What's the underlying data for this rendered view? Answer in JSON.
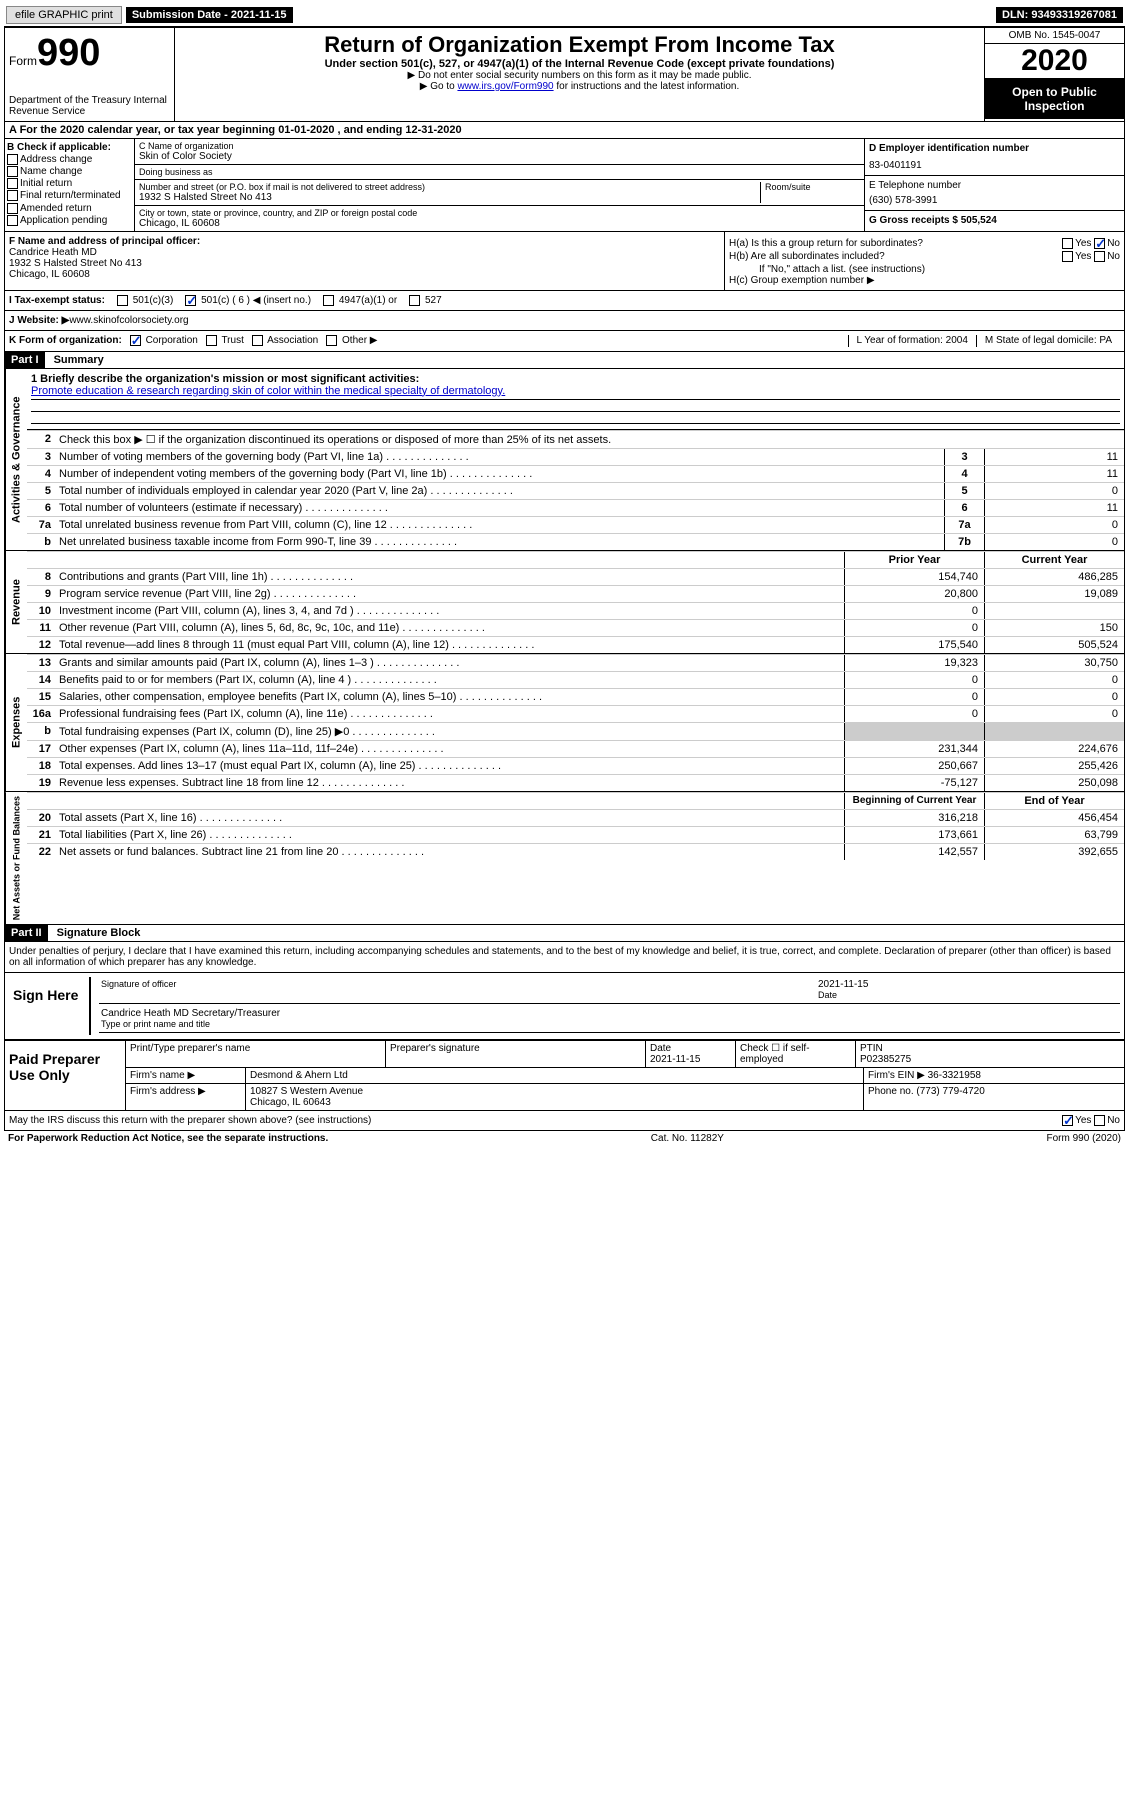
{
  "top": {
    "efile": "efile GRAPHIC print",
    "submission_label": "Submission Date - 2021-11-15",
    "dln": "DLN: 93493319267081"
  },
  "header": {
    "form_label": "Form",
    "form_num": "990",
    "dept": "Department of the Treasury Internal Revenue Service",
    "title": "Return of Organization Exempt From Income Tax",
    "subtitle": "Under section 501(c), 527, or 4947(a)(1) of the Internal Revenue Code (except private foundations)",
    "note1": "▶ Do not enter social security numbers on this form as it may be made public.",
    "note2_pre": "▶ Go to ",
    "note2_link": "www.irs.gov/Form990",
    "note2_post": " for instructions and the latest information.",
    "omb": "OMB No. 1545-0047",
    "year": "2020",
    "open": "Open to Public Inspection"
  },
  "row_a": "A For the 2020 calendar year, or tax year beginning 01-01-2020    , and ending 12-31-2020",
  "b": {
    "header": "B Check if applicable:",
    "items": [
      "Address change",
      "Name change",
      "Initial return",
      "Final return/terminated",
      "Amended return",
      "Application pending"
    ]
  },
  "c": {
    "name_label": "C Name of organization",
    "name": "Skin of Color Society",
    "dba_label": "Doing business as",
    "dba": "",
    "addr_label": "Number and street (or P.O. box if mail is not delivered to street address)",
    "room_label": "Room/suite",
    "addr": "1932 S Halsted Street No 413",
    "city_label": "City or town, state or province, country, and ZIP or foreign postal code",
    "city": "Chicago, IL  60608"
  },
  "d": {
    "ein_label": "D Employer identification number",
    "ein": "83-0401191",
    "phone_label": "E Telephone number",
    "phone": "(630) 578-3991",
    "gross_label": "G Gross receipts $ 505,524"
  },
  "f": {
    "label": "F  Name and address of principal officer:",
    "name": "Candrice Heath MD",
    "addr1": "1932 S Halsted Street No 413",
    "addr2": "Chicago, IL  60608"
  },
  "h": {
    "a_label": "H(a)  Is this a group return for subordinates?",
    "b_label": "H(b)  Are all subordinates included?",
    "b_note": "If \"No,\" attach a list. (see instructions)",
    "c_label": "H(c)  Group exemption number ▶"
  },
  "i": {
    "label": "I  Tax-exempt status:",
    "opts": [
      "501(c)(3)",
      "501(c) ( 6 ) ◀ (insert no.)",
      "4947(a)(1) or",
      "527"
    ]
  },
  "j": {
    "label": "J  Website: ▶ ",
    "value": "www.skinofcolorsociety.org"
  },
  "k": {
    "label": "K Form of organization:",
    "opts": [
      "Corporation",
      "Trust",
      "Association",
      "Other ▶"
    ],
    "l_label": "L Year of formation: 2004",
    "m_label": "M State of legal domicile: PA"
  },
  "part1": {
    "header": "Part I",
    "title": "Summary",
    "line1_label": "1  Briefly describe the organization's mission or most significant activities:",
    "mission": "Promote education & research regarding skin of color within the medical specialty of dermatology.",
    "line2": "Check this box ▶ ☐  if the organization discontinued its operations or disposed of more than 25% of its net assets.",
    "governance": [
      {
        "n": "3",
        "d": "Number of voting members of the governing body (Part VI, line 1a)",
        "r": "3",
        "v": "11"
      },
      {
        "n": "4",
        "d": "Number of independent voting members of the governing body (Part VI, line 1b)",
        "r": "4",
        "v": "11"
      },
      {
        "n": "5",
        "d": "Total number of individuals employed in calendar year 2020 (Part V, line 2a)",
        "r": "5",
        "v": "0"
      },
      {
        "n": "6",
        "d": "Total number of volunteers (estimate if necessary)",
        "r": "6",
        "v": "11"
      },
      {
        "n": "7a",
        "d": "Total unrelated business revenue from Part VIII, column (C), line 12",
        "r": "7a",
        "v": "0"
      },
      {
        "n": "b",
        "d": "Net unrelated business taxable income from Form 990-T, line 39",
        "r": "7b",
        "v": "0"
      }
    ],
    "prior_label": "Prior Year",
    "current_label": "Current Year",
    "revenue": [
      {
        "n": "8",
        "d": "Contributions and grants (Part VIII, line 1h)",
        "p": "154,740",
        "c": "486,285"
      },
      {
        "n": "9",
        "d": "Program service revenue (Part VIII, line 2g)",
        "p": "20,800",
        "c": "19,089"
      },
      {
        "n": "10",
        "d": "Investment income (Part VIII, column (A), lines 3, 4, and 7d )",
        "p": "0",
        "c": ""
      },
      {
        "n": "11",
        "d": "Other revenue (Part VIII, column (A), lines 5, 6d, 8c, 9c, 10c, and 11e)",
        "p": "0",
        "c": "150"
      },
      {
        "n": "12",
        "d": "Total revenue—add lines 8 through 11 (must equal Part VIII, column (A), line 12)",
        "p": "175,540",
        "c": "505,524"
      }
    ],
    "expenses": [
      {
        "n": "13",
        "d": "Grants and similar amounts paid (Part IX, column (A), lines 1–3 )",
        "p": "19,323",
        "c": "30,750"
      },
      {
        "n": "14",
        "d": "Benefits paid to or for members (Part IX, column (A), line 4 )",
        "p": "0",
        "c": "0"
      },
      {
        "n": "15",
        "d": "Salaries, other compensation, employee benefits (Part IX, column (A), lines 5–10)",
        "p": "0",
        "c": "0"
      },
      {
        "n": "16a",
        "d": "Professional fundraising fees (Part IX, column (A), line 11e)",
        "p": "0",
        "c": "0"
      },
      {
        "n": "b",
        "d": "Total fundraising expenses (Part IX, column (D), line 25) ▶0",
        "p": "",
        "c": "",
        "grey": true
      },
      {
        "n": "17",
        "d": "Other expenses (Part IX, column (A), lines 11a–11d, 11f–24e)",
        "p": "231,344",
        "c": "224,676"
      },
      {
        "n": "18",
        "d": "Total expenses. Add lines 13–17 (must equal Part IX, column (A), line 25)",
        "p": "250,667",
        "c": "255,426"
      },
      {
        "n": "19",
        "d": "Revenue less expenses. Subtract line 18 from line 12",
        "p": "-75,127",
        "c": "250,098"
      }
    ],
    "begin_label": "Beginning of Current Year",
    "end_label": "End of Year",
    "netassets": [
      {
        "n": "20",
        "d": "Total assets (Part X, line 16)",
        "p": "316,218",
        "c": "456,454"
      },
      {
        "n": "21",
        "d": "Total liabilities (Part X, line 26)",
        "p": "173,661",
        "c": "63,799"
      },
      {
        "n": "22",
        "d": "Net assets or fund balances. Subtract line 21 from line 20",
        "p": "142,557",
        "c": "392,655"
      }
    ]
  },
  "part2": {
    "header": "Part II",
    "title": "Signature Block",
    "perjury": "Under penalties of perjury, I declare that I have examined this return, including accompanying schedules and statements, and to the best of my knowledge and belief, it is true, correct, and complete. Declaration of preparer (other than officer) is based on all information of which preparer has any knowledge.",
    "sign_here": "Sign Here",
    "sig_officer": "Signature of officer",
    "sig_date": "2021-11-15",
    "date_label": "Date",
    "officer_name": "Candrice Heath MD Secretary/Treasurer",
    "type_label": "Type or print name and title",
    "paid": "Paid Preparer Use Only",
    "prep_name_label": "Print/Type preparer's name",
    "prep_sig_label": "Preparer's signature",
    "prep_date": "Date\n2021-11-15",
    "prep_check": "Check ☐ if self-employed",
    "ptin_label": "PTIN",
    "ptin": "P02385275",
    "firm_name_label": "Firm's name    ▶",
    "firm_name": "Desmond & Ahern Ltd",
    "firm_ein_label": "Firm's EIN ▶",
    "firm_ein": "36-3321958",
    "firm_addr_label": "Firm's address ▶",
    "firm_addr": "10827 S Western Avenue\nChicago, IL  60643",
    "firm_phone_label": "Phone no.",
    "firm_phone": "(773) 779-4720",
    "discuss": "May the IRS discuss this return with the preparer shown above? (see instructions)",
    "paperwork": "For Paperwork Reduction Act Notice, see the separate instructions.",
    "catno": "Cat. No. 11282Y",
    "formref": "Form 990 (2020)"
  }
}
